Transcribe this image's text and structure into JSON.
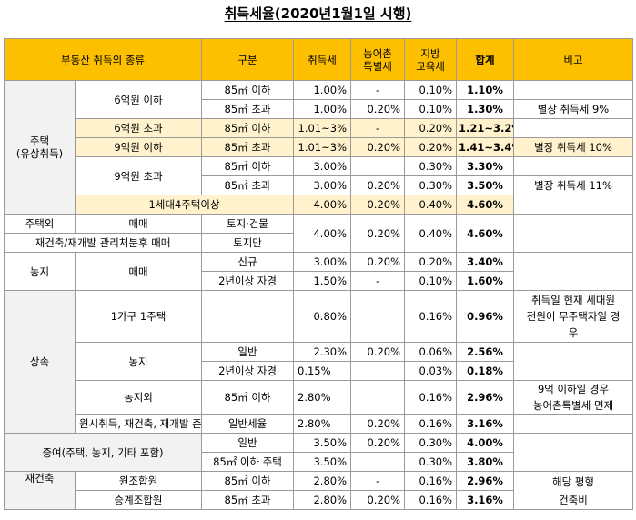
{
  "title": "취득세율(2020년1월1일 시행)",
  "header": {
    "type": "부동산 취득의 종류",
    "division": "구분",
    "acq_tax": "취득세",
    "rural_tax_l1": "농어촌",
    "rural_tax_l2": "특별세",
    "edu_tax_l1": "지방",
    "edu_tax_l2": "교육세",
    "total": "합계",
    "note": "비고"
  },
  "housing": {
    "label_l1": "주택",
    "label_l2": "(유상취득)",
    "under6": "6억원 이하",
    "over6": "6억원 초과",
    "under9": "9억원 이하",
    "over9": "9억원 초과",
    "fourplus": "1세대4주택이상",
    "r1": {
      "sub": "85㎡ 이하",
      "acq": "1.00%",
      "rural": "-",
      "edu": "0.10%",
      "total": "1.10%"
    },
    "r2": {
      "sub": "85㎡ 초과",
      "acq": "1.00%",
      "rural": "0.20%",
      "edu": "0.10%",
      "total": "1.30%",
      "note": "별장 취득세 9%"
    },
    "r3": {
      "sub": "85㎡ 이하",
      "acq": "1.01~3%",
      "rural": "-",
      "edu": "0.20%",
      "total": "1.21~3.2%"
    },
    "r4": {
      "sub": "85㎡ 초과",
      "acq": "1.01~3%",
      "rural": "0.20%",
      "edu": "0.20%",
      "total": "1.41~3.4%",
      "note": "별장 취득세 10%"
    },
    "r5": {
      "sub": "85㎡ 이하",
      "acq": "3.00%",
      "rural": "",
      "edu": "0.30%",
      "total": "3.30%"
    },
    "r6": {
      "sub": "85㎡ 초과",
      "acq": "3.00%",
      "rural": "0.20%",
      "edu": "0.30%",
      "total": "3.50%",
      "note": "별장 취득세 11%"
    },
    "r7": {
      "acq": "4.00%",
      "rural": "0.20%",
      "edu": "0.40%",
      "total": "4.60%"
    }
  },
  "nonhouse": {
    "label": "주택외",
    "trade": "매매",
    "land_bldg": "토지·건물",
    "redev": "재건축/재개발 관리처분후 매매",
    "land_only": "토지만",
    "acq": "4.00%",
    "rural": "0.20%",
    "edu": "0.40%",
    "total": "4.60%"
  },
  "farmland": {
    "label": "농지",
    "trade": "매매",
    "r1": {
      "sub": "신규",
      "acq": "3.00%",
      "rural": "0.20%",
      "edu": "0.20%",
      "total": "3.40%"
    },
    "r2": {
      "sub": "2년이상 자경",
      "acq": "1.50%",
      "rural": "-",
      "edu": "0.10%",
      "total": "1.60%"
    }
  },
  "inherit": {
    "label": "상속",
    "one_house": "1가구 1주택",
    "one_house_vals": {
      "acq": "0.80%",
      "rural": "",
      "edu": "0.16%",
      "total": "0.96%"
    },
    "one_house_note_l1": "취득일 현재 세대원",
    "one_house_note_l2": "전원이 무주택자일 경",
    "one_house_note_l3": "우",
    "farm": "농지",
    "farm_r1": {
      "sub": "일반",
      "acq": "2.30%",
      "rural": "0.20%",
      "edu": "0.06%",
      "total": "2.56%"
    },
    "farm_r2": {
      "sub": "2년이상 자경",
      "acq": "0.15%",
      "rural": "",
      "edu": "0.03%",
      "total": "0.18%"
    },
    "nonfarm": "농지외",
    "nonfarm_r1": {
      "sub": "85㎡ 이하",
      "acq": "2.80%",
      "rural": "",
      "edu": "0.16%",
      "total": "2.96%"
    },
    "nonfarm_note_l1": "9억 이하일 경우",
    "nonfarm_note_l2": "농어촌특별세 면제",
    "general_rate": "일반세율"
  },
  "original": {
    "label": "원시취득, 재건축, 재개발 준공후(건물만 과세)",
    "acq": "2.80%",
    "rural": "0.20%",
    "edu": "0.16%",
    "total": "3.16%"
  },
  "gift": {
    "label": "증여(주택, 농지, 기타 포함)",
    "r1": {
      "sub": "일반",
      "acq": "3.50%",
      "rural": "0.20%",
      "edu": "0.30%",
      "total": "4.00%"
    },
    "r2": {
      "sub": "85㎡ 이하 주택",
      "acq": "3.50%",
      "rural": "",
      "edu": "0.30%",
      "total": "3.80%"
    }
  },
  "rebuild": {
    "label": "재건축",
    "r1": {
      "kind": "원조합원",
      "sub": "85㎡ 이하",
      "acq": "2.80%",
      "rural": "-",
      "edu": "0.16%",
      "total": "2.96%"
    },
    "r2": {
      "kind": "승계조합원",
      "sub": "85㎡ 초과",
      "acq": "2.80%",
      "rural": "0.20%",
      "edu": "0.16%",
      "total": "3.16%"
    },
    "note_l1": "해당 평형",
    "note_l2": "건축비"
  }
}
